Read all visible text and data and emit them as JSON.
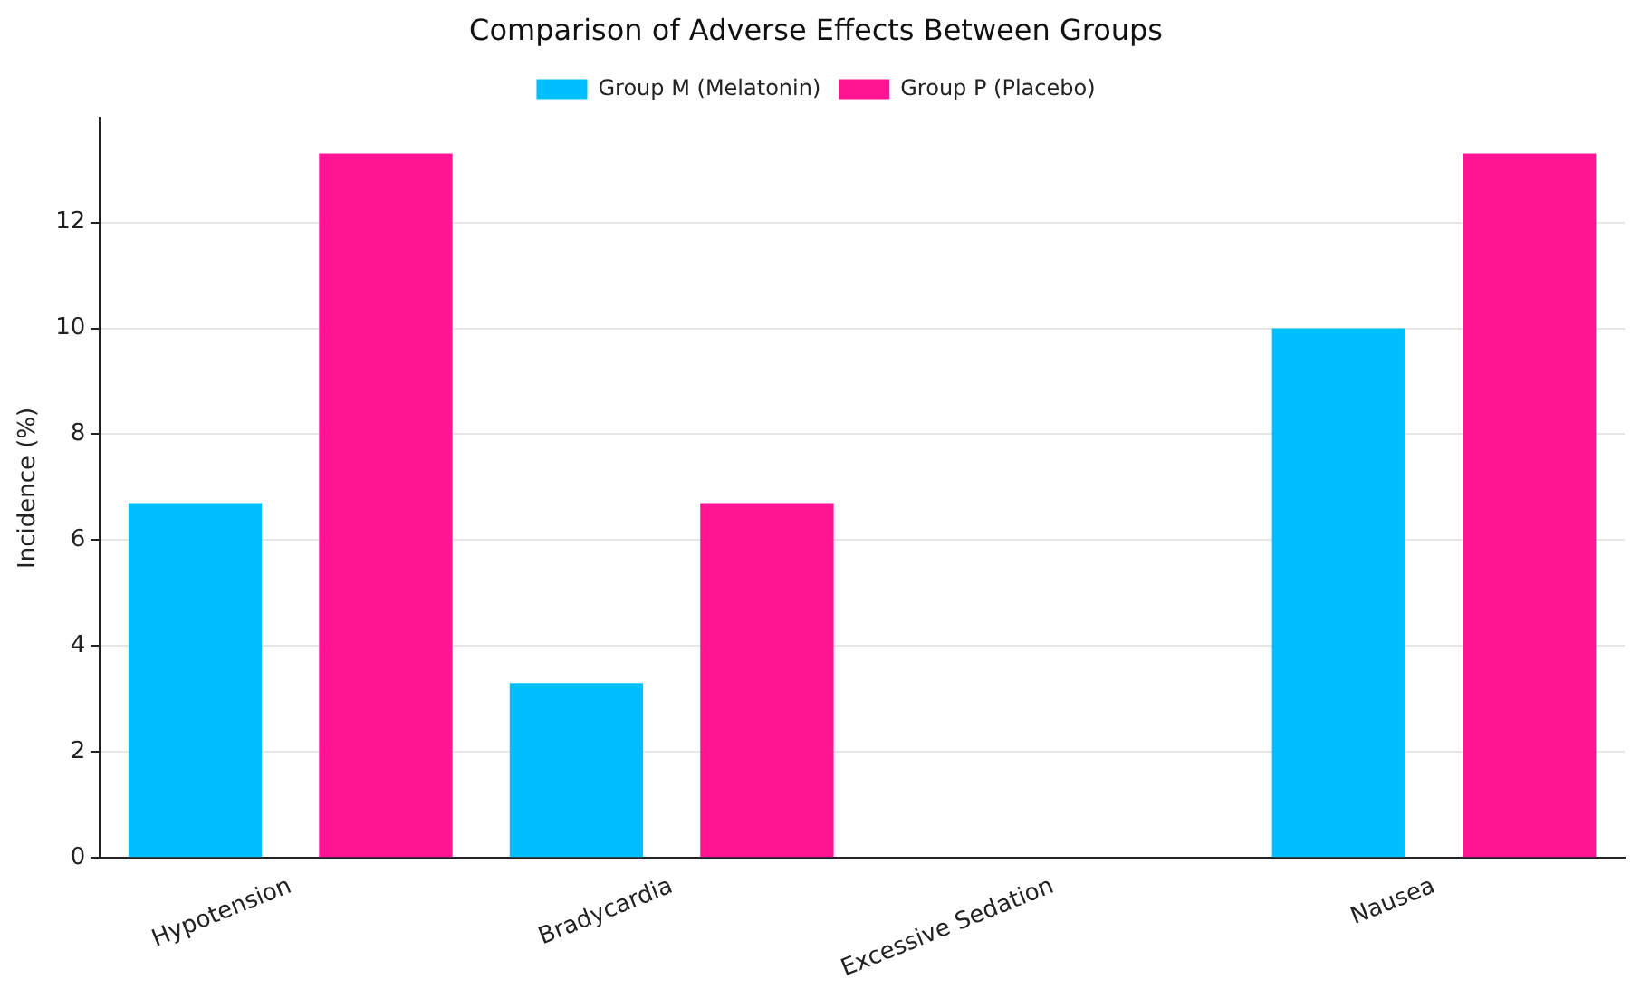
{
  "chart_data": {
    "type": "bar",
    "title": "Comparison of Adverse Effects Between Groups",
    "ylabel": "Incidence (%)",
    "categories": [
      "Hypotension",
      "Bradycardia",
      "Excessive Sedation",
      "Nausea"
    ],
    "series": [
      {
        "name": "Group M (Melatonin)",
        "color": "#00bfff",
        "values": [
          6.7,
          3.3,
          0,
          10
        ]
      },
      {
        "name": "Group P (Placebo)",
        "color": "#ff1493",
        "values": [
          13.3,
          6.7,
          0,
          13.3
        ]
      }
    ],
    "ylim": [
      0,
      13.97
    ],
    "yticks": [
      0,
      2,
      4,
      6,
      8,
      10,
      12
    ],
    "grid": "y",
    "legend": "top"
  }
}
